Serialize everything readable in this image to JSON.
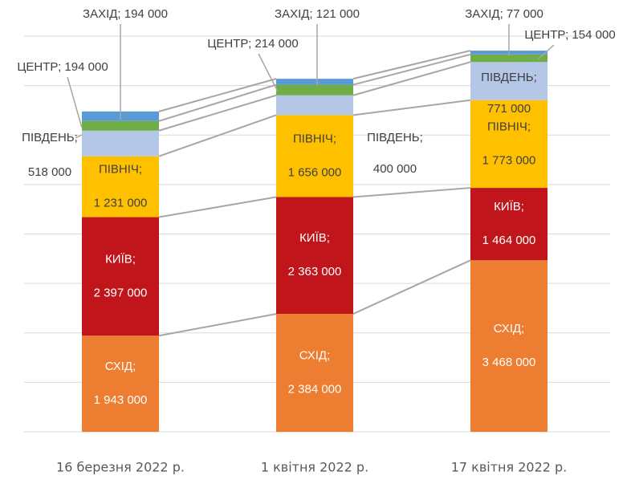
{
  "chart_data": {
    "type": "stacked_bar",
    "categories": [
      "16 березня 2022 р.",
      "1 квітня 2022 р.",
      "17 квітня 2022 р."
    ],
    "ylim": [
      0,
      8000000
    ],
    "yticks": [
      0,
      1000000,
      2000000,
      3000000,
      4000000,
      5000000,
      6000000,
      7000000,
      8000000
    ],
    "grid": true,
    "series_lines": true,
    "series": [
      {
        "color": "#ED7D31",
        "values": [
          1943000,
          2384000,
          3468000
        ],
        "value_labels": [
          [
            "СХІД;",
            "1 943 000"
          ],
          [
            "СХІД;",
            "2 384 000"
          ],
          [
            "СХІД;",
            "3 468 000"
          ]
        ]
      },
      {
        "color": "#C0161B",
        "values": [
          2397000,
          2363000,
          1464000
        ],
        "value_labels": [
          [
            "КИЇВ;",
            "2 397 000"
          ],
          [
            "КИЇВ;",
            "2 363 000"
          ],
          [
            "КИЇВ;",
            "1 464 000"
          ]
        ]
      },
      {
        "color": "#FFC000",
        "values": [
          1231000,
          1656000,
          1773000
        ],
        "value_labels": [
          [
            "ПІВНІЧ;",
            "1 231 000"
          ],
          [
            "ПІВНІЧ;",
            "1 656 000"
          ],
          [
            "ПІВНІЧ;",
            "1 773 000"
          ]
        ]
      },
      {
        "color": "#B4C7E7",
        "values": [
          518000,
          400000,
          771000
        ],
        "value_labels": [
          [
            "ПІВДЕНЬ;",
            "518 000"
          ],
          [
            "ПІВДЕНЬ;",
            "400 000"
          ],
          [
            "ПІВДЕНЬ;",
            "771 000"
          ]
        ]
      },
      {
        "color": "#70AD47",
        "values": [
          194000,
          214000,
          154000
        ],
        "value_labels": [
          [
            "ЦЕНТР; 194 000"
          ],
          [
            "ЦЕНТР; 214 000"
          ],
          [
            "ЦЕНТР; 154 000"
          ]
        ]
      },
      {
        "color": "#5B9BD5",
        "values": [
          194000,
          121000,
          77000
        ],
        "value_labels": [
          [
            "ЗАХІД; 194 000"
          ],
          [
            "ЗАХІД; 121 000"
          ],
          [
            "ЗАХІД; 77 000"
          ]
        ]
      }
    ]
  }
}
